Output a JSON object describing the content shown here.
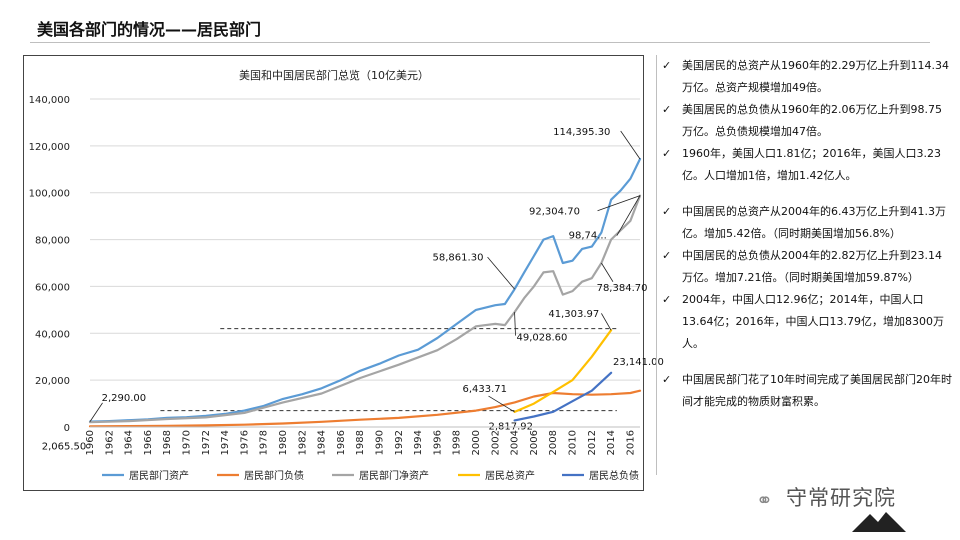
{
  "page": {
    "title": "美国各部门的情况——居民部门",
    "logo_text": "守常研究院"
  },
  "notes": [
    "美国居民的总资产从1960年的2.29万亿上升到114.34万亿。总资产规模增加49倍。",
    "美国居民的总负债从1960年的2.06万亿上升到98.75万亿。总负债规模增加47倍。",
    "1960年，美国人口1.81亿；2016年，美国人口3.23亿。人口增加1倍，增加1.42亿人。",
    "中国居民的总资产从2004年的6.43万亿上升到41.3万亿。增加5.42倍。（同时期美国增加56.8%）",
    "中国居民的总负债从2004年的2.82万亿上升到23.14万亿。增加7.21倍。（同时期美国增加59.87%）",
    "2004年，中国人口12.96亿；2014年，中国人口13.64亿；2016年，中国人口13.79亿，增加8300万人。",
    "中国居民部门花了10年时间完成了美国居民部门20年时间才能完成的物质财富积累。"
  ],
  "check_mark": "✓",
  "chart_data": {
    "type": "line",
    "title": "美国和中国居民部门总览（10亿美元）",
    "xlabel": "",
    "ylabel": "",
    "ylim": [
      0,
      140000
    ],
    "yticks": [
      0,
      20000,
      40000,
      60000,
      80000,
      100000,
      120000,
      140000
    ],
    "ytick_labels": [
      "0",
      "20,000",
      "40,000",
      "60,000",
      "80,000",
      "100,000",
      "120,000",
      "140,000"
    ],
    "xlim": [
      1960,
      2017
    ],
    "xticks": [
      1960,
      1962,
      1964,
      1966,
      1968,
      1970,
      1972,
      1974,
      1976,
      1978,
      1980,
      1982,
      1984,
      1986,
      1988,
      1990,
      1992,
      1994,
      1996,
      1998,
      2000,
      2002,
      2004,
      2006,
      2008,
      2010,
      2012,
      2014,
      2016
    ],
    "series": [
      {
        "name": "居民部门资产",
        "color": "#5B9BD5",
        "x": [
          1960,
          1962,
          1964,
          1966,
          1968,
          1970,
          1972,
          1974,
          1976,
          1978,
          1980,
          1982,
          1984,
          1986,
          1988,
          1990,
          1992,
          1994,
          1996,
          1998,
          2000,
          2002,
          2003,
          2004,
          2005,
          2006,
          2007,
          2008,
          2009,
          2010,
          2011,
          2012,
          2013,
          2014,
          2015,
          2016,
          2017
        ],
        "y": [
          2290,
          2500,
          2900,
          3300,
          3900,
          4200,
          4800,
          5600,
          7000,
          9000,
          12000,
          14000,
          16500,
          20000,
          24000,
          27000,
          30500,
          33000,
          38000,
          44000,
          50000,
          52000,
          52500,
          58861,
          66000,
          73000,
          80000,
          81500,
          70000,
          71000,
          76000,
          77000,
          83000,
          97000,
          101000,
          106000,
          114395
        ]
      },
      {
        "name": "居民部门负债",
        "color": "#ED7D31",
        "x": [
          1960,
          1964,
          1968,
          1972,
          1976,
          1980,
          1984,
          1988,
          1992,
          1996,
          2000,
          2002,
          2004,
          2006,
          2008,
          2010,
          2012,
          2014,
          2016,
          2017
        ],
        "y": [
          300,
          400,
          500,
          700,
          1000,
          1500,
          2200,
          3100,
          3900,
          5200,
          7000,
          8500,
          10500,
          13000,
          14500,
          14000,
          13800,
          14000,
          14500,
          15500
        ]
      },
      {
        "name": "居民部门净资产",
        "color": "#A5A5A5",
        "x": [
          1960,
          1964,
          1968,
          1972,
          1976,
          1980,
          1984,
          1988,
          1992,
          1996,
          1998,
          2000,
          2002,
          2003,
          2004,
          2005,
          2006,
          2007,
          2008,
          2009,
          2010,
          2011,
          2012,
          2013,
          2014,
          2015,
          2016,
          2017
        ],
        "y": [
          2065,
          2500,
          3400,
          4100,
          6000,
          10500,
          14300,
          20900,
          26600,
          32800,
          37500,
          43000,
          44000,
          43500,
          49029,
          55000,
          60000,
          66000,
          66500,
          56500,
          58000,
          62000,
          63500,
          70000,
          80000,
          84000,
          88000,
          98740
        ]
      },
      {
        "name": "居民总资产",
        "color": "#FFC000",
        "x": [
          2004,
          2006,
          2008,
          2010,
          2012,
          2014
        ],
        "y": [
          6434,
          10000,
          15000,
          20000,
          30000,
          41304
        ]
      },
      {
        "name": "居民总负债",
        "color": "#4472C4",
        "x": [
          2004,
          2006,
          2008,
          2010,
          2012,
          2014
        ],
        "y": [
          2818,
          4500,
          6500,
          11000,
          15500,
          23141
        ]
      }
    ],
    "annotations": [
      "114,395.30",
      "92,304.70",
      "98,74...",
      "78,384.70",
      "58,861.30",
      "49,028.60",
      "41,303.97",
      "23,141.00",
      "6,433.71",
      "2,817.92",
      "2,290.00",
      "2,065.50"
    ],
    "reference_values": [
      42000,
      7000
    ],
    "legend_position": "bottom"
  }
}
